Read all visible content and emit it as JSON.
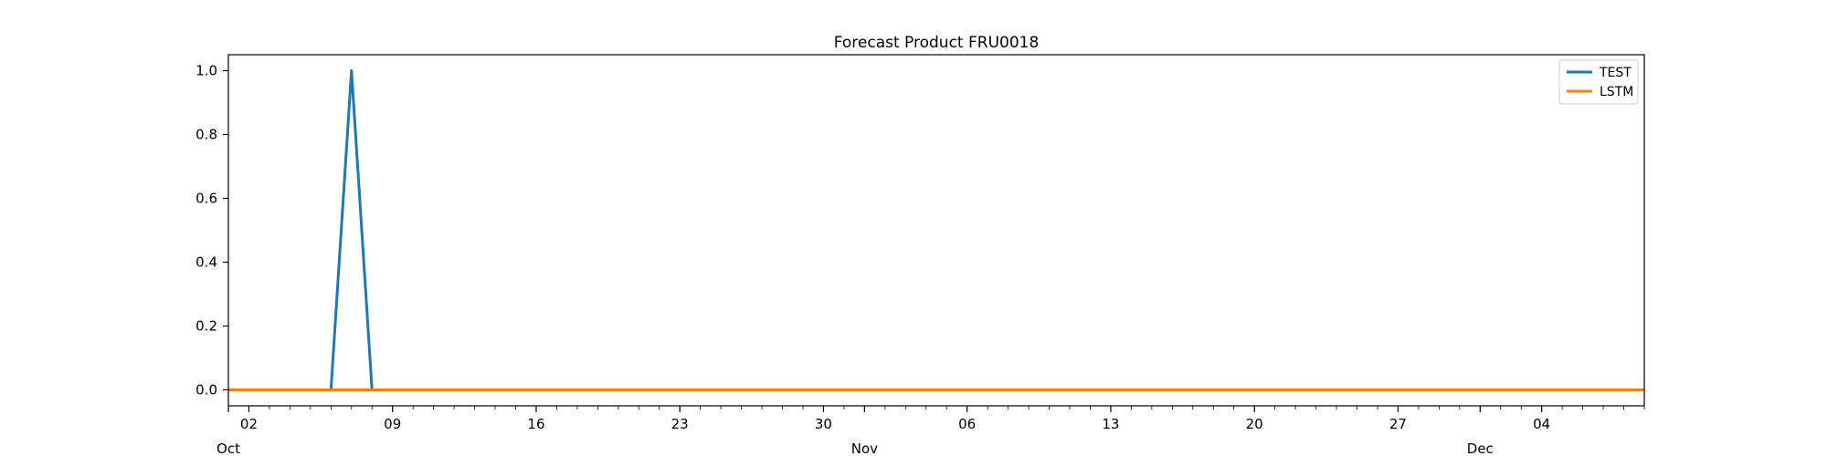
{
  "chart_data": {
    "type": "line",
    "title": "Forecast Product FRU0018",
    "xlabel": "",
    "ylabel": "",
    "x_start_date": "2022-10-01",
    "x_end_date": "2022-12-09",
    "ylim": [
      -0.05,
      1.05
    ],
    "yticks": [
      0.0,
      0.2,
      0.4,
      0.6,
      0.8,
      1.0
    ],
    "ytick_labels": [
      "0.0",
      "0.2",
      "0.4",
      "0.6",
      "0.8",
      "1.0"
    ],
    "xticks_major": [
      {
        "date": "2022-10-02",
        "label": "02"
      },
      {
        "date": "2022-10-09",
        "label": "09"
      },
      {
        "date": "2022-10-16",
        "label": "16"
      },
      {
        "date": "2022-10-23",
        "label": "23"
      },
      {
        "date": "2022-10-30",
        "label": "30"
      },
      {
        "date": "2022-11-06",
        "label": "06"
      },
      {
        "date": "2022-11-13",
        "label": "13"
      },
      {
        "date": "2022-11-20",
        "label": "20"
      },
      {
        "date": "2022-11-27",
        "label": "27"
      },
      {
        "date": "2022-12-04",
        "label": "04"
      }
    ],
    "month_labels": [
      {
        "date": "2022-10-01",
        "label": "Oct"
      },
      {
        "date": "2022-11-01",
        "label": "Nov"
      },
      {
        "date": "2022-12-01",
        "label": "Dec"
      }
    ],
    "grid": false,
    "legend_position": "top-right",
    "series": [
      {
        "name": "TEST",
        "color": "#1f77b4",
        "points": [
          {
            "x": "2022-10-01",
            "y": 0
          },
          {
            "x": "2022-10-06",
            "y": 0
          },
          {
            "x": "2022-10-07",
            "y": 1
          },
          {
            "x": "2022-10-08",
            "y": 0
          },
          {
            "x": "2022-12-09",
            "y": 0
          }
        ]
      },
      {
        "name": "LSTM",
        "color": "#ff7f0e",
        "points": [
          {
            "x": "2022-10-01",
            "y": 0
          },
          {
            "x": "2022-12-09",
            "y": 0
          }
        ]
      }
    ]
  }
}
